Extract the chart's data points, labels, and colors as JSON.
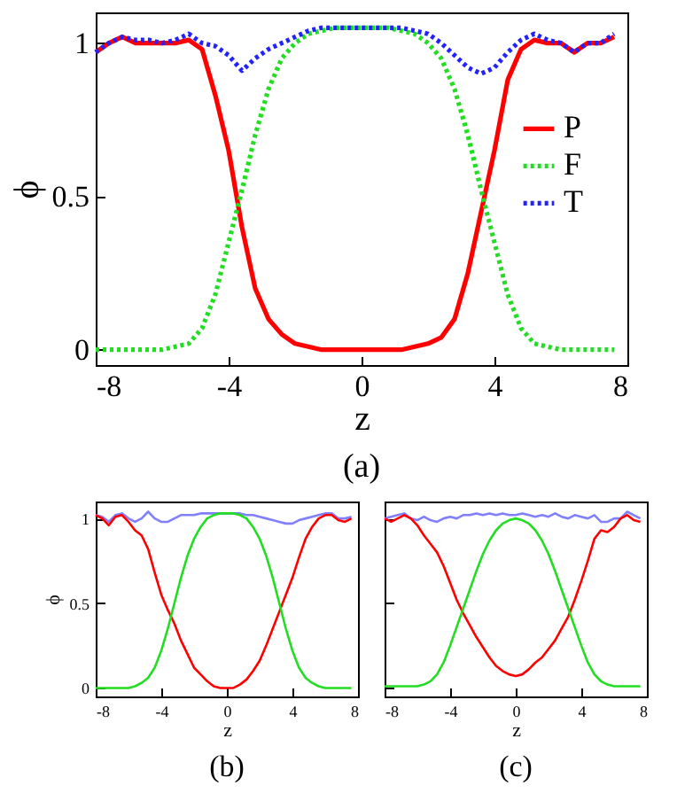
{
  "chart_data": [
    {
      "type": "line",
      "title": "(a)",
      "xlabel": "z",
      "ylabel": "ϕ",
      "xlim": [
        -8,
        8
      ],
      "ylim": [
        -0.05,
        1.1
      ],
      "xticks": [
        -8,
        -4,
        0,
        4,
        8
      ],
      "yticks": [
        0,
        0.5,
        1
      ],
      "grid": false,
      "legend": "right",
      "marker": "none",
      "x": [
        -8,
        -7.6,
        -7.2,
        -6.8,
        -6.4,
        -6,
        -5.6,
        -5.2,
        -4.8,
        -4.4,
        -4,
        -3.6,
        -3.2,
        -2.8,
        -2.4,
        -2,
        -1.6,
        -1.2,
        -0.8,
        -0.4,
        0,
        0.4,
        0.8,
        1.2,
        1.6,
        2,
        2.4,
        2.8,
        3.2,
        3.6,
        4,
        4.4,
        4.8,
        5.2,
        5.6,
        6,
        6.4,
        6.8,
        7.2,
        7.6
      ],
      "series": [
        {
          "name": "P",
          "color": "#ff0000",
          "line_style": "solid",
          "values": [
            0.97,
            1.0,
            1.02,
            1.0,
            1.0,
            1.0,
            1.0,
            1.01,
            0.98,
            0.83,
            0.65,
            0.4,
            0.2,
            0.1,
            0.05,
            0.02,
            0.01,
            0,
            0,
            0,
            0,
            0,
            0,
            0,
            0.01,
            0.02,
            0.04,
            0.1,
            0.25,
            0.45,
            0.65,
            0.88,
            0.98,
            1.01,
            1.0,
            1.0,
            0.97,
            1.0,
            1.0,
            1.02
          ]
        },
        {
          "name": "F",
          "color": "#22dd22",
          "line_style": "dotted",
          "values": [
            0,
            0,
            0,
            0,
            0,
            0,
            0.01,
            0.02,
            0.07,
            0.18,
            0.35,
            0.52,
            0.7,
            0.85,
            0.95,
            1.0,
            1.03,
            1.04,
            1.05,
            1.05,
            1.05,
            1.05,
            1.05,
            1.04,
            1.03,
            1.0,
            0.95,
            0.85,
            0.7,
            0.52,
            0.35,
            0.18,
            0.07,
            0.02,
            0.01,
            0,
            0,
            0,
            0,
            0
          ]
        },
        {
          "name": "T",
          "color": "#2222ff",
          "line_style": "dotted",
          "values": [
            0.97,
            1.0,
            1.02,
            1.01,
            1.01,
            1.0,
            1.01,
            1.03,
            1.0,
            0.99,
            0.96,
            0.91,
            0.95,
            0.98,
            1.0,
            1.02,
            1.04,
            1.05,
            1.05,
            1.05,
            1.05,
            1.05,
            1.05,
            1.05,
            1.04,
            1.03,
            1.0,
            0.96,
            0.92,
            0.9,
            0.92,
            0.97,
            1.01,
            1.03,
            1.01,
            1.0,
            0.97,
            1.0,
            1.0,
            1.03
          ]
        }
      ]
    },
    {
      "type": "line",
      "title": "(b)",
      "xlabel": "z",
      "ylabel": "ϕ",
      "xlim": [
        -8,
        8
      ],
      "ylim": [
        -0.05,
        1.1
      ],
      "xticks": [
        -8,
        -4,
        0,
        4,
        8
      ],
      "yticks": [
        0,
        0.5,
        1
      ],
      "grid": false,
      "marker": "none",
      "x": [
        -8,
        -7.6,
        -7.2,
        -6.8,
        -6.4,
        -6,
        -5.6,
        -5.2,
        -4.8,
        -4.4,
        -4,
        -3.6,
        -3.2,
        -2.8,
        -2.4,
        -2,
        -1.6,
        -1.2,
        -0.8,
        -0.4,
        0,
        0.4,
        0.8,
        1.2,
        1.6,
        2,
        2.4,
        2.8,
        3.2,
        3.6,
        4,
        4.4,
        4.8,
        5.2,
        5.6,
        6,
        6.4,
        6.8,
        7.2,
        7.6
      ],
      "series": [
        {
          "color": "#8080ff",
          "line_style": "solid",
          "values": [
            1.02,
            1.01,
            0.98,
            1.02,
            1.03,
            1.0,
            0.98,
            1.0,
            1.04,
            1.0,
            0.98,
            0.98,
            1.0,
            1.02,
            1.02,
            1.02,
            1.03,
            1.03,
            1.03,
            1.03,
            1.03,
            1.03,
            1.03,
            1.02,
            1.02,
            1.01,
            1.0,
            0.99,
            0.98,
            0.97,
            0.97,
            0.99,
            1.0,
            1.01,
            1.02,
            1.03,
            1.03,
            1.0,
            1.0,
            1.01
          ]
        },
        {
          "color": "#ff0000",
          "line_style": "solid",
          "values": [
            1.02,
            1.0,
            0.96,
            1.01,
            1.02,
            0.98,
            0.93,
            0.9,
            0.82,
            0.68,
            0.55,
            0.46,
            0.38,
            0.28,
            0.2,
            0.12,
            0.08,
            0.04,
            0.01,
            0,
            0,
            0,
            0.02,
            0.05,
            0.1,
            0.16,
            0.25,
            0.35,
            0.45,
            0.55,
            0.65,
            0.77,
            0.88,
            0.95,
            1.0,
            1.02,
            1.02,
            0.99,
            0.98,
            1.0
          ]
        },
        {
          "color": "#22dd22",
          "line_style": "solid",
          "values": [
            0,
            0,
            0,
            0,
            0,
            0,
            0.01,
            0.03,
            0.06,
            0.12,
            0.22,
            0.35,
            0.5,
            0.65,
            0.78,
            0.88,
            0.95,
            1.0,
            1.02,
            1.03,
            1.03,
            1.03,
            1.02,
            1.0,
            0.95,
            0.88,
            0.78,
            0.65,
            0.5,
            0.35,
            0.22,
            0.12,
            0.06,
            0.03,
            0.01,
            0,
            0,
            0,
            0,
            0
          ]
        }
      ]
    },
    {
      "type": "line",
      "title": "(c)",
      "xlabel": "z",
      "xlim": [
        -8,
        8
      ],
      "ylim": [
        -0.05,
        1.1
      ],
      "xticks": [
        -8,
        -4,
        0,
        4,
        8
      ],
      "yticks": [
        0,
        0.5,
        1
      ],
      "tick_labels": "x",
      "grid": false,
      "marker": "none",
      "x": [
        -8,
        -7.6,
        -7.2,
        -6.8,
        -6.4,
        -6,
        -5.6,
        -5.2,
        -4.8,
        -4.4,
        -4,
        -3.6,
        -3.2,
        -2.8,
        -2.4,
        -2,
        -1.6,
        -1.2,
        -0.8,
        -0.4,
        0,
        0.4,
        0.8,
        1.2,
        1.6,
        2,
        2.4,
        2.8,
        3.2,
        3.6,
        4,
        4.4,
        4.8,
        5.2,
        5.6,
        6,
        6.4,
        6.8,
        7.2,
        7.6
      ],
      "series": [
        {
          "color": "#8080ff",
          "line_style": "solid",
          "values": [
            1.0,
            1.01,
            1.02,
            1.03,
            1.0,
            0.99,
            1.01,
            0.99,
            0.98,
            1.0,
            1.01,
            1.0,
            1.02,
            1.02,
            1.03,
            1.02,
            1.03,
            1.02,
            1.03,
            1.02,
            1.02,
            1.03,
            1.02,
            1.01,
            1.02,
            1.01,
            1.03,
            1.01,
            1.0,
            1.02,
            1.01,
            1.0,
            1.02,
            0.98,
            0.98,
            1.0,
            1.0,
            1.04,
            1.02,
            1.0
          ]
        },
        {
          "color": "#ff0000",
          "line_style": "solid",
          "values": [
            1.0,
            0.98,
            1.0,
            1.02,
            1.0,
            0.96,
            0.9,
            0.85,
            0.8,
            0.72,
            0.62,
            0.52,
            0.44,
            0.37,
            0.3,
            0.24,
            0.18,
            0.13,
            0.1,
            0.08,
            0.07,
            0.08,
            0.11,
            0.15,
            0.18,
            0.23,
            0.28,
            0.35,
            0.42,
            0.52,
            0.63,
            0.75,
            0.88,
            0.93,
            0.92,
            0.95,
            1.0,
            1.02,
            0.99,
            0.98
          ]
        },
        {
          "color": "#22dd22",
          "line_style": "solid",
          "values": [
            0.01,
            0.01,
            0.01,
            0.01,
            0.01,
            0.01,
            0.02,
            0.04,
            0.08,
            0.15,
            0.25,
            0.36,
            0.47,
            0.58,
            0.69,
            0.79,
            0.87,
            0.93,
            0.97,
            0.99,
            1.0,
            0.99,
            0.97,
            0.93,
            0.87,
            0.79,
            0.69,
            0.58,
            0.47,
            0.36,
            0.25,
            0.15,
            0.08,
            0.04,
            0.02,
            0.01,
            0.01,
            0.01,
            0.01,
            0.01
          ]
        }
      ]
    }
  ]
}
